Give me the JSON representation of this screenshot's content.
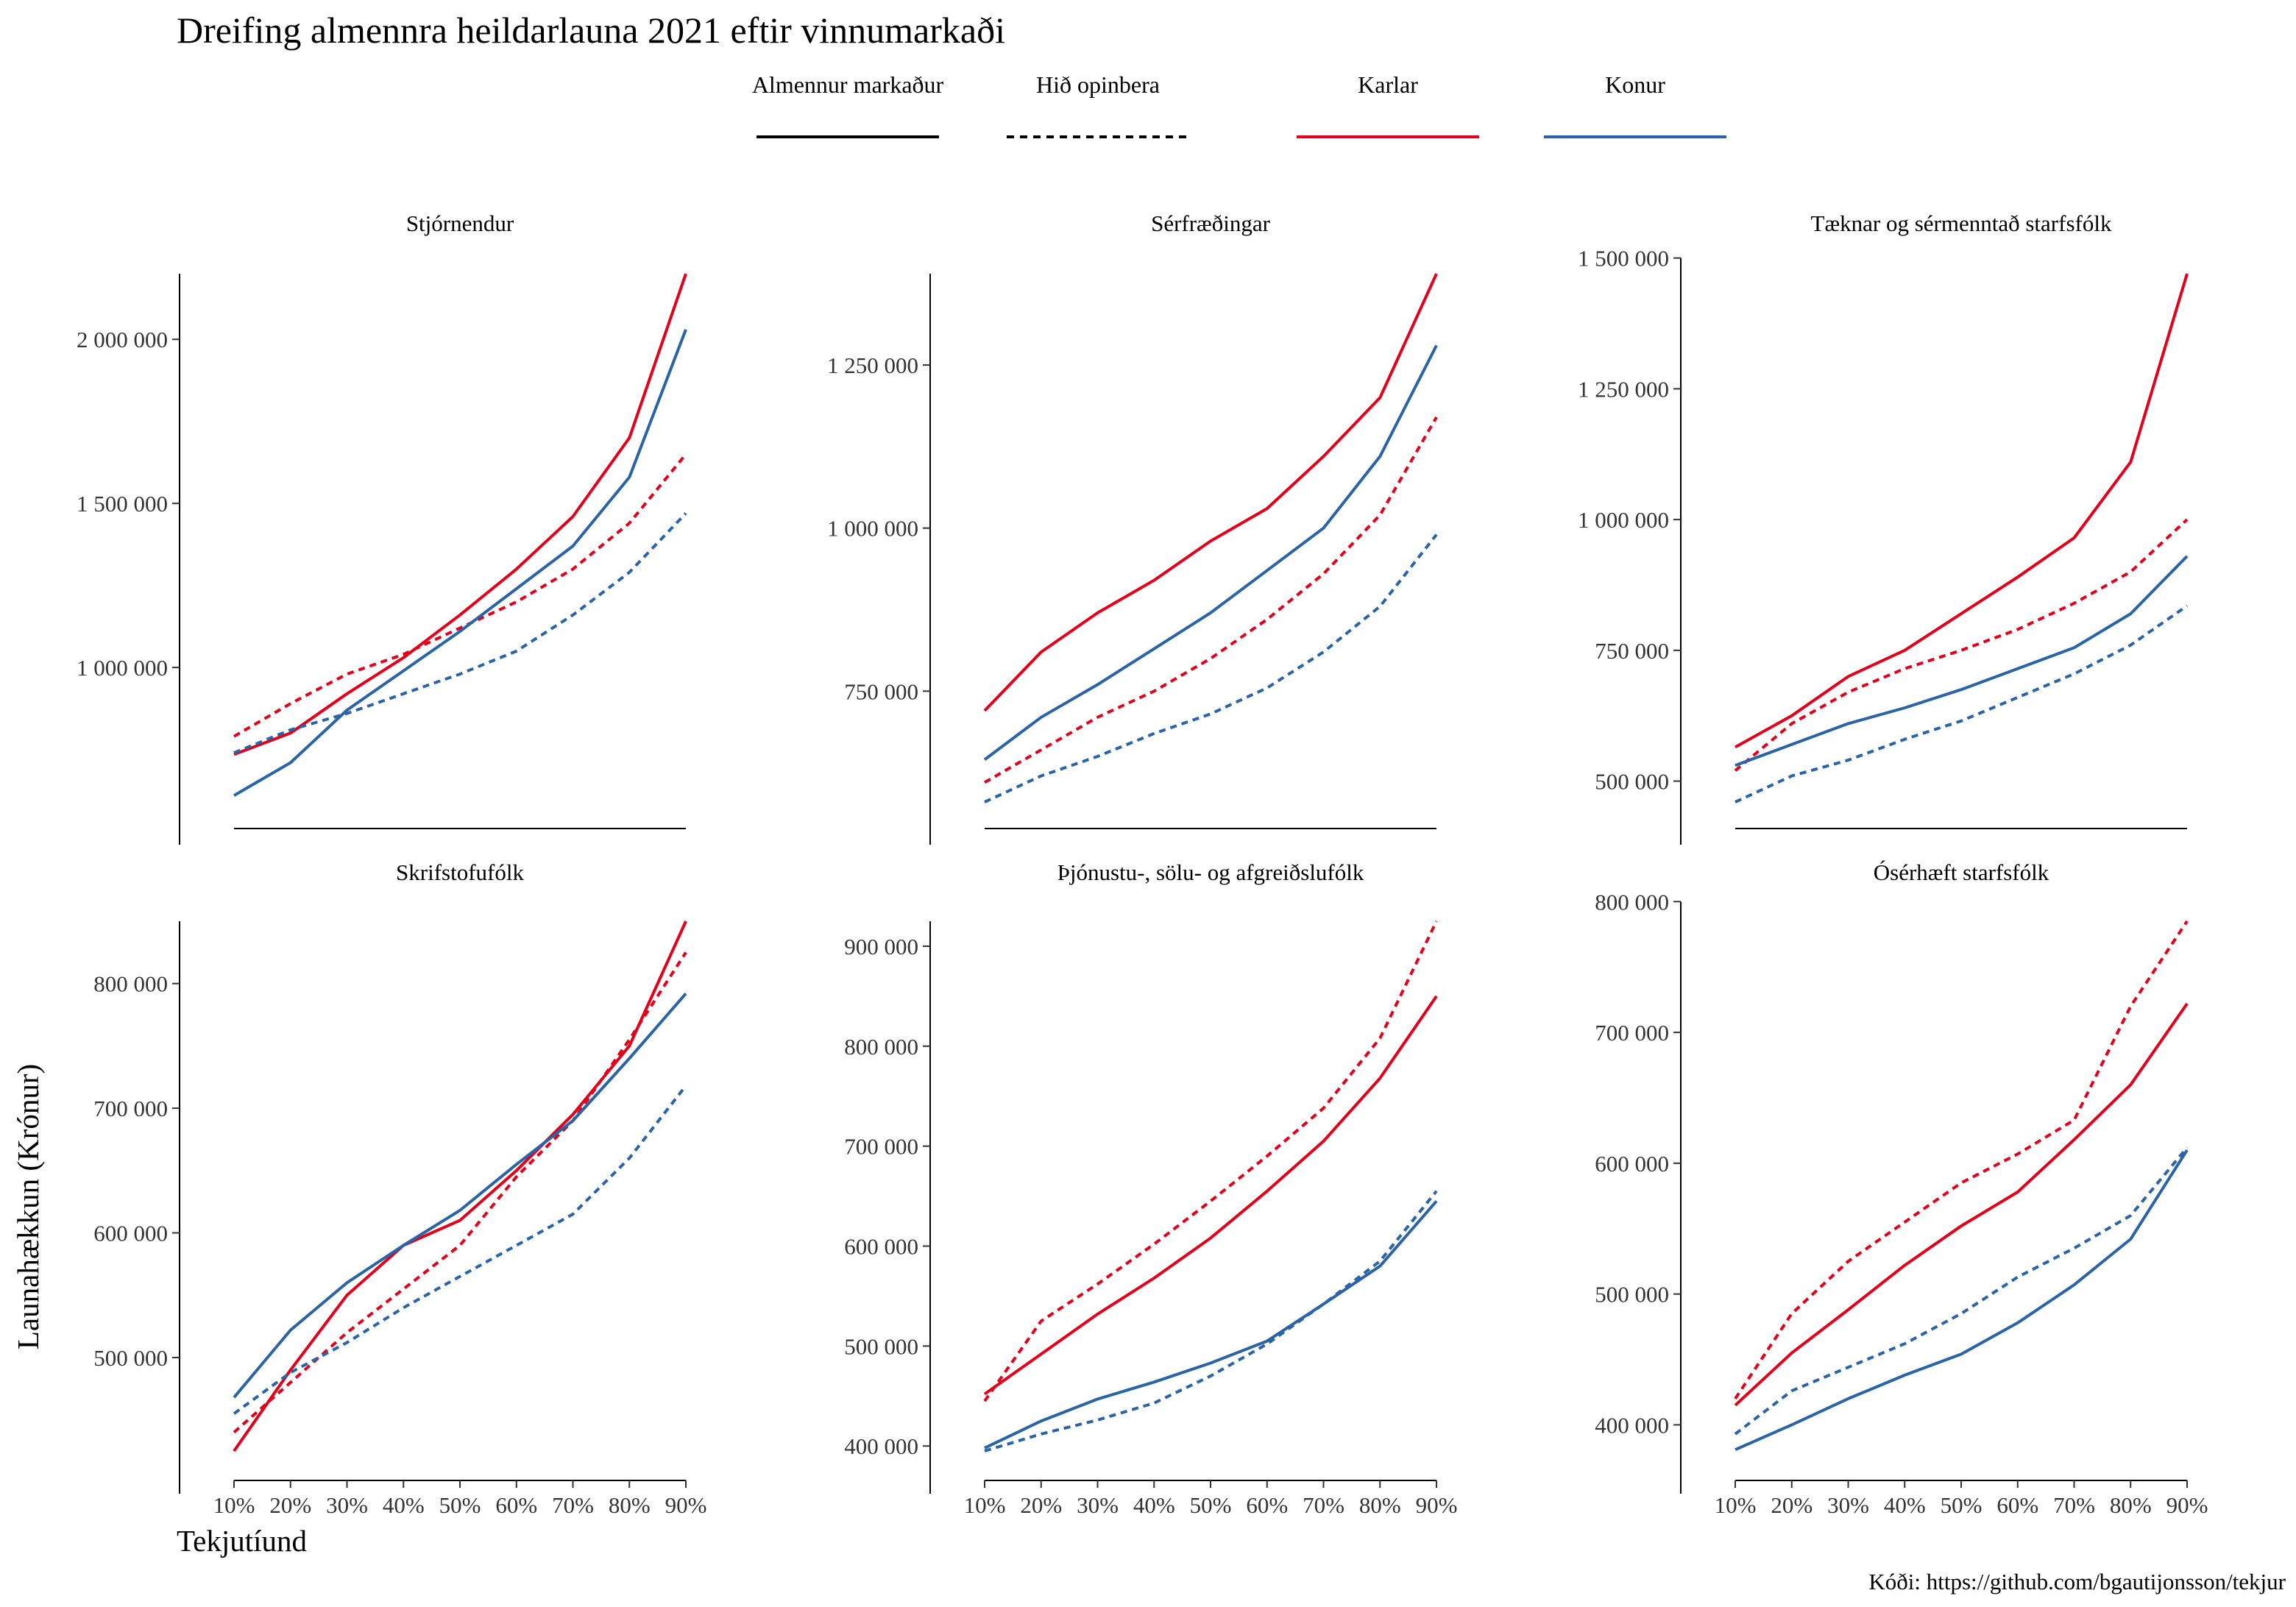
{
  "title": "Dreifing almennra heildarlauna 2021 eftir vinnumarkaði",
  "legend": [
    {
      "label": "Almennur markaður",
      "color": "#000000",
      "dash": "solid"
    },
    {
      "label": "Hið opinbera",
      "color": "#000000",
      "dash": "dashed"
    },
    {
      "label": "Karlar",
      "color": "#e3001b",
      "dash": "solid"
    },
    {
      "label": "Konur",
      "color": "#2a64a6",
      "dash": "solid"
    }
  ],
  "xlabel": "Tekjutíund",
  "ylabel": "Launahækkun (Krónur)",
  "caption": "Kóði: https://github.com/bgautijonsson/tekjur",
  "colors": {
    "karlar": "#e3001b",
    "konur": "#2a64a6"
  },
  "chart_data": [
    {
      "type": "line",
      "title": "Stjórnendur",
      "x": [
        "10%",
        "20%",
        "30%",
        "40%",
        "50%",
        "60%",
        "70%",
        "80%",
        "90%"
      ],
      "ylim": [
        590000,
        2200000
      ],
      "yticks": [
        1000000,
        1500000,
        2000000
      ],
      "ytick_labels": [
        "1 000 000",
        "1 500 000",
        "2 000 000"
      ],
      "series": [
        {
          "name": "Karlar Almennur markaður",
          "color": "#e3001b",
          "dash": "solid",
          "values": [
            735000,
            800000,
            920000,
            1030000,
            1160000,
            1300000,
            1460000,
            1700000,
            2200000
          ]
        },
        {
          "name": "Karlar Hið opinbera",
          "color": "#e3001b",
          "dash": "dashed",
          "values": [
            790000,
            890000,
            980000,
            1040000,
            1120000,
            1200000,
            1300000,
            1440000,
            1650000
          ]
        },
        {
          "name": "Konur Almennur markaður",
          "color": "#2a64a6",
          "dash": "solid",
          "values": [
            610000,
            710000,
            870000,
            990000,
            1110000,
            1240000,
            1370000,
            1580000,
            2030000
          ]
        },
        {
          "name": "Konur Hið opinbera",
          "color": "#2a64a6",
          "dash": "dashed",
          "values": [
            740000,
            810000,
            860000,
            920000,
            980000,
            1050000,
            1160000,
            1290000,
            1470000
          ]
        }
      ]
    },
    {
      "type": "line",
      "title": "Sérfræðingar",
      "x": [
        "10%",
        "20%",
        "30%",
        "40%",
        "50%",
        "60%",
        "70%",
        "80%",
        "90%"
      ],
      "ylim": [
        580000,
        1390000
      ],
      "yticks": [
        750000,
        1000000,
        1250000
      ],
      "ytick_labels": [
        "750 000",
        "1 000 000",
        "1 250 000"
      ],
      "series": [
        {
          "name": "Karlar Almennur markaður",
          "color": "#e3001b",
          "dash": "solid",
          "values": [
            720000,
            810000,
            870000,
            920000,
            980000,
            1030000,
            1110000,
            1200000,
            1390000
          ]
        },
        {
          "name": "Karlar Hið opinbera",
          "color": "#e3001b",
          "dash": "dashed",
          "values": [
            610000,
            660000,
            710000,
            750000,
            800000,
            860000,
            930000,
            1020000,
            1170000
          ]
        },
        {
          "name": "Konur Almennur markaður",
          "color": "#2a64a6",
          "dash": "solid",
          "values": [
            645000,
            710000,
            760000,
            815000,
            870000,
            935000,
            1000000,
            1110000,
            1280000
          ]
        },
        {
          "name": "Konur Hið opinbera",
          "color": "#2a64a6",
          "dash": "dashed",
          "values": [
            580000,
            620000,
            650000,
            685000,
            715000,
            755000,
            810000,
            880000,
            990000
          ]
        }
      ]
    },
    {
      "type": "line",
      "title": "Tæknar og sérmenntað starfsfólk",
      "x": [
        "10%",
        "20%",
        "30%",
        "40%",
        "50%",
        "60%",
        "70%",
        "80%",
        "90%"
      ],
      "ylim": [
        460000,
        1470000
      ],
      "yticks": [
        500000,
        750000,
        1000000,
        1250000,
        1500000
      ],
      "ytick_labels": [
        "500 000",
        "750 000",
        "1 000 000",
        "1 250 000",
        "1 500 000"
      ],
      "series": [
        {
          "name": "Karlar Almennur markaður",
          "color": "#e3001b",
          "dash": "solid",
          "values": [
            565000,
            625000,
            700000,
            750000,
            820000,
            890000,
            965000,
            1110000,
            1470000
          ]
        },
        {
          "name": "Karlar Hið opinbera",
          "color": "#e3001b",
          "dash": "dashed",
          "values": [
            520000,
            610000,
            670000,
            715000,
            750000,
            790000,
            840000,
            900000,
            1000000
          ]
        },
        {
          "name": "Konur Almennur markaður",
          "color": "#2a64a6",
          "dash": "solid",
          "values": [
            530000,
            570000,
            610000,
            640000,
            675000,
            715000,
            755000,
            820000,
            930000
          ]
        },
        {
          "name": "Konur Hið opinbera",
          "color": "#2a64a6",
          "dash": "dashed",
          "values": [
            460000,
            510000,
            540000,
            580000,
            615000,
            660000,
            705000,
            760000,
            835000
          ]
        }
      ]
    },
    {
      "type": "line",
      "title": "Skrifstofufólk",
      "x": [
        "10%",
        "20%",
        "30%",
        "40%",
        "50%",
        "60%",
        "70%",
        "80%",
        "90%"
      ],
      "ylim": [
        425000,
        850000
      ],
      "yticks": [
        500000,
        600000,
        700000,
        800000
      ],
      "ytick_labels": [
        "500 000",
        "600 000",
        "700 000",
        "800 000"
      ],
      "series": [
        {
          "name": "Karlar Almennur markaður",
          "color": "#e3001b",
          "dash": "solid",
          "values": [
            425000,
            490000,
            550000,
            590000,
            610000,
            650000,
            695000,
            750000,
            850000
          ]
        },
        {
          "name": "Karlar Hið opinbera",
          "color": "#e3001b",
          "dash": "dashed",
          "values": [
            440000,
            480000,
            520000,
            555000,
            590000,
            645000,
            690000,
            755000,
            825000
          ]
        },
        {
          "name": "Konur Almennur markaður",
          "color": "#2a64a6",
          "dash": "solid",
          "values": [
            468000,
            522000,
            560000,
            590000,
            618000,
            655000,
            690000,
            740000,
            792000
          ]
        },
        {
          "name": "Konur Hið opinbera",
          "color": "#2a64a6",
          "dash": "dashed",
          "values": [
            455000,
            488000,
            512000,
            540000,
            565000,
            590000,
            615000,
            660000,
            718000
          ]
        }
      ]
    },
    {
      "type": "line",
      "title": "Þjónustu-, sölu- og afgreiðslufólk",
      "x": [
        "10%",
        "20%",
        "30%",
        "40%",
        "50%",
        "60%",
        "70%",
        "80%",
        "90%"
      ],
      "ylim": [
        395000,
        925000
      ],
      "yticks": [
        400000,
        500000,
        600000,
        700000,
        800000,
        900000
      ],
      "ytick_labels": [
        "400 000",
        "500 000",
        "600 000",
        "700 000",
        "800 000",
        "900 000"
      ],
      "series": [
        {
          "name": "Karlar Almennur markaður",
          "color": "#e3001b",
          "dash": "solid",
          "values": [
            452000,
            492000,
            532000,
            568000,
            608000,
            655000,
            705000,
            768000,
            850000
          ]
        },
        {
          "name": "Karlar Hið opinbera",
          "color": "#e3001b",
          "dash": "dashed",
          "values": [
            445000,
            525000,
            562000,
            602000,
            645000,
            690000,
            738000,
            808000,
            925000
          ]
        },
        {
          "name": "Konur Almennur markaður",
          "color": "#2a64a6",
          "dash": "solid",
          "values": [
            398000,
            425000,
            447000,
            464000,
            483000,
            505000,
            542000,
            580000,
            645000
          ]
        },
        {
          "name": "Konur Hið opinbera",
          "color": "#2a64a6",
          "dash": "dashed",
          "values": [
            395000,
            412000,
            426000,
            443000,
            470000,
            502000,
            542000,
            585000,
            655000
          ]
        }
      ]
    },
    {
      "type": "line",
      "title": "Ósérhæft starfsfólk",
      "x": [
        "10%",
        "20%",
        "30%",
        "40%",
        "50%",
        "60%",
        "70%",
        "80%",
        "90%"
      ],
      "ylim": [
        380000,
        785000
      ],
      "yticks": [
        400000,
        500000,
        600000,
        700000,
        800000
      ],
      "ytick_labels": [
        "400 000",
        "500 000",
        "600 000",
        "700 000",
        "800 000"
      ],
      "series": [
        {
          "name": "Karlar Almennur markaður",
          "color": "#e3001b",
          "dash": "solid",
          "values": [
            415000,
            455000,
            488000,
            522000,
            552000,
            578000,
            618000,
            660000,
            722000
          ]
        },
        {
          "name": "Karlar Hið opinbera",
          "color": "#e3001b",
          "dash": "dashed",
          "values": [
            420000,
            485000,
            525000,
            555000,
            585000,
            607000,
            633000,
            720000,
            785000
          ]
        },
        {
          "name": "Konur Almennur markaður",
          "color": "#2a64a6",
          "dash": "solid",
          "values": [
            381000,
            400000,
            420000,
            438000,
            454000,
            478000,
            507000,
            542000,
            610000
          ]
        },
        {
          "name": "Konur Hið opinbera",
          "color": "#2a64a6",
          "dash": "dashed",
          "values": [
            393000,
            426000,
            444000,
            462000,
            485000,
            513000,
            535000,
            560000,
            612000
          ]
        }
      ]
    }
  ]
}
